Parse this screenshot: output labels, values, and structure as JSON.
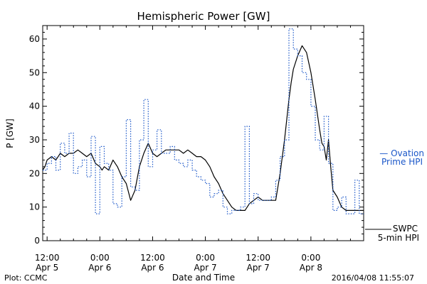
{
  "chart_data": {
    "type": "line",
    "title": "Hemispheric Power [GW]",
    "xlabel": "Date and Time",
    "ylabel": "P [GW]",
    "ylim": [
      0,
      64
    ],
    "yticks": [
      0,
      10,
      20,
      30,
      40,
      50,
      60
    ],
    "x_range_hours": [
      -1,
      72
    ],
    "x_ticks": [
      {
        "hour": 0,
        "time": "12:00",
        "date": "Apr 5"
      },
      {
        "hour": 12,
        "time": "0:00",
        "date": "Apr 6"
      },
      {
        "hour": 24,
        "time": "12:00",
        "date": "Apr 6"
      },
      {
        "hour": 36,
        "time": "0:00",
        "date": "Apr 7"
      },
      {
        "hour": 48,
        "time": "12:00",
        "date": "Apr 7"
      },
      {
        "hour": 60,
        "time": "0:00",
        "date": "Apr 8"
      }
    ],
    "grid": false,
    "series": [
      {
        "name": "SWPC 5-min HPI",
        "color": "#000000",
        "style": "solid",
        "x": [
          -1,
          -0.5,
          0,
          1,
          2,
          3,
          4,
          5,
          6,
          7,
          8,
          9,
          10,
          11,
          12,
          12.5,
          13,
          14,
          15,
          16,
          17,
          18,
          19,
          20,
          21,
          22,
          23,
          24,
          25,
          26,
          27,
          28,
          29,
          30,
          31,
          32,
          33,
          34,
          35,
          36,
          37,
          38,
          39,
          40,
          41,
          42,
          43,
          44,
          45,
          46,
          47,
          48,
          49,
          50,
          51,
          52,
          53,
          54,
          54.5,
          55,
          55.5,
          56,
          57,
          58,
          59,
          60,
          61,
          62,
          62.5,
          63,
          63.5,
          64,
          64.5,
          65,
          66,
          67,
          68,
          69,
          70,
          71,
          72
        ],
        "values": [
          21,
          22,
          24,
          25,
          24,
          26,
          25,
          26,
          26,
          27,
          26,
          25,
          26,
          23,
          22,
          21,
          22,
          21,
          24,
          22,
          19,
          17,
          12,
          15,
          22,
          26,
          29,
          26,
          25,
          26,
          27,
          27,
          27,
          27,
          26,
          27,
          26,
          25,
          25,
          24,
          22,
          19,
          17,
          14,
          12,
          10,
          9,
          9,
          9,
          11,
          12,
          13,
          12,
          12,
          12,
          12,
          20,
          30,
          36,
          42,
          47,
          51,
          55,
          58,
          56,
          50,
          42,
          33,
          29,
          28,
          24,
          30,
          22,
          15,
          13,
          10,
          9,
          9,
          9,
          9,
          9
        ]
      },
      {
        "name": "Ovation Prime HPI",
        "color": "#1a56c8",
        "style": "dotted-step",
        "x": [
          -1,
          0,
          1,
          2,
          3,
          4,
          5,
          6,
          7,
          8,
          9,
          10,
          11,
          12,
          13,
          14,
          15,
          16,
          17,
          18,
          19,
          20,
          21,
          22,
          23,
          24,
          25,
          26,
          27,
          28,
          29,
          30,
          31,
          32,
          33,
          34,
          35,
          36,
          37,
          38,
          39,
          40,
          41,
          42,
          43,
          44,
          45,
          46,
          47,
          48,
          49,
          50,
          51,
          52,
          53,
          54,
          55,
          56,
          57,
          58,
          59,
          60,
          61,
          62,
          63,
          64,
          65,
          66,
          67,
          68,
          69,
          70,
          71,
          72
        ],
        "values": [
          21,
          23,
          25,
          21,
          29,
          26,
          32,
          20,
          22,
          24,
          19,
          31,
          8,
          28,
          23,
          21,
          11,
          10,
          19,
          36,
          16,
          15,
          30,
          42,
          22,
          27,
          33,
          26,
          26,
          28,
          24,
          23,
          22,
          24,
          21,
          19,
          18,
          17,
          13,
          14,
          15,
          10,
          8,
          9,
          9,
          10,
          34,
          11,
          14,
          12,
          12,
          12,
          13,
          18,
          25,
          30,
          63,
          57,
          55,
          50,
          48,
          40,
          30,
          27,
          37,
          23,
          9,
          10,
          13,
          8,
          8,
          18,
          8,
          8
        ]
      }
    ],
    "legend_items": [
      {
        "line1": "— Ovation",
        "line2": "Prime HPI"
      },
      {
        "line1": "SWPC",
        "line2": "5-min HPI"
      }
    ],
    "annotations": {
      "plot_credit": "Plot: CCMC",
      "timestamp": "2016/04/08 11:55:07"
    }
  }
}
